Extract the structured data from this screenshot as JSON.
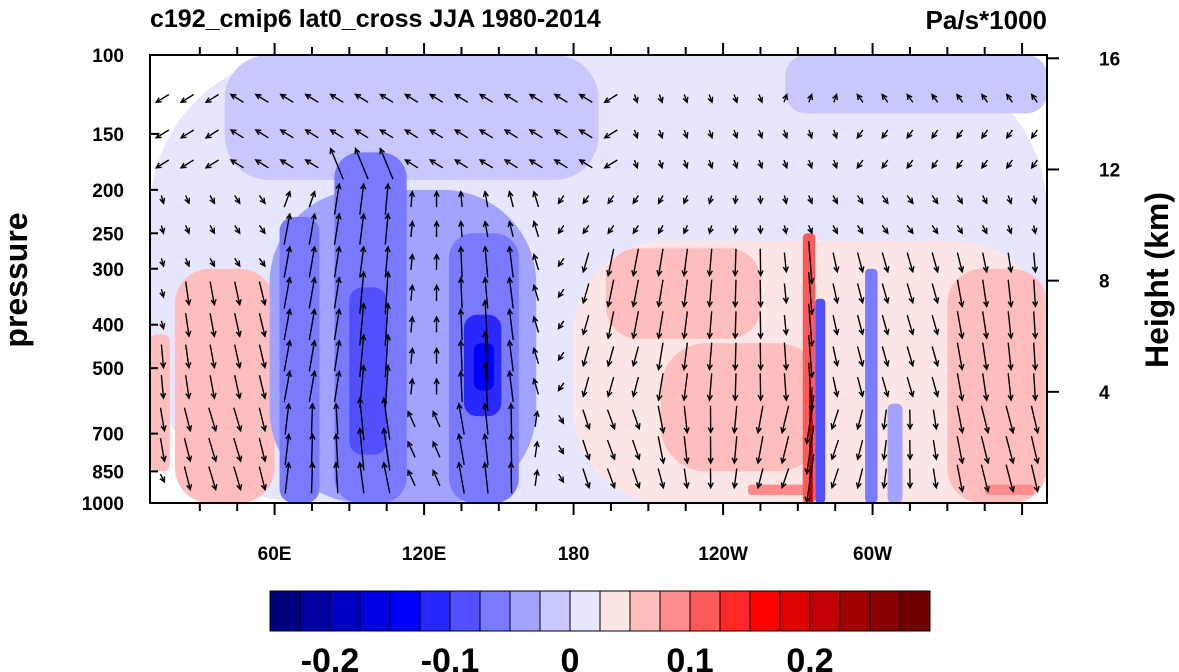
{
  "chart_data": {
    "type": "heatmap",
    "title": "c192_cmip6 lat0_cross JJA 1980-2014",
    "units": "Pa/s*1000",
    "ylabel": "pressure",
    "ylabel_right": "Height (km)",
    "y_scale": "log",
    "y_reversed": true,
    "ylim": [
      1000,
      100
    ],
    "y_ticks": [
      100,
      150,
      200,
      250,
      300,
      400,
      500,
      700,
      850,
      1000
    ],
    "x_range_deg_east": [
      10,
      370
    ],
    "x_ticks": [
      {
        "lon": 60,
        "label": "60E"
      },
      {
        "lon": 120,
        "label": "120E"
      },
      {
        "lon": 180,
        "label": "180"
      },
      {
        "lon": 240,
        "label": "120W"
      },
      {
        "lon": 300,
        "label": "60W"
      }
    ],
    "right_ticks": [
      {
        "km": 4,
        "label": "4"
      },
      {
        "km": 8,
        "label": "8"
      },
      {
        "km": 12,
        "label": "12"
      },
      {
        "km": 16,
        "label": "16"
      }
    ],
    "colorbar": {
      "levels": [
        -0.25,
        -0.225,
        -0.2,
        -0.175,
        -0.15,
        -0.125,
        -0.1,
        -0.075,
        -0.05,
        -0.025,
        0,
        0.025,
        0.05,
        0.075,
        0.1,
        0.125,
        0.15,
        0.175,
        0.2,
        0.225,
        0.25,
        0.275
      ],
      "colors": [
        "#00007f",
        "#0000a0",
        "#0000c2",
        "#0000e0",
        "#0000ff",
        "#2828ff",
        "#5050ff",
        "#7a7aff",
        "#a3a3ff",
        "#c8c8ff",
        "#e6e6ff",
        "#ffe6e6",
        "#ffbebe",
        "#ff8c8c",
        "#ff5a5a",
        "#ff2828",
        "#ff0000",
        "#e00000",
        "#c00000",
        "#a00000",
        "#880000",
        "#700000"
      ],
      "labels": [
        {
          "value": -0.2,
          "text": "-0.2"
        },
        {
          "value": -0.1,
          "text": "-0.1"
        },
        {
          "value": 0,
          "text": "0"
        },
        {
          "value": 0.1,
          "text": "0.1"
        },
        {
          "value": 0.2,
          "text": "0.2"
        }
      ]
    },
    "regions": [
      {
        "lon": [
          10,
          370
        ],
        "p": [
          100,
          1000
        ],
        "value": 0.01
      },
      {
        "lon": [
          40,
          190
        ],
        "p": [
          100,
          190
        ],
        "value": -0.01
      },
      {
        "lon": [
          265,
          370
        ],
        "p": [
          100,
          135
        ],
        "value": -0.01
      },
      {
        "lon": [
          20,
          60
        ],
        "p": [
          300,
          1000
        ],
        "value": 0.05
      },
      {
        "lon": [
          10,
          18
        ],
        "p": [
          420,
          850
        ],
        "value": 0.05
      },
      {
        "lon": [
          58,
          165
        ],
        "p": [
          200,
          1000
        ],
        "value": -0.03
      },
      {
        "lon": [
          62,
          78
        ],
        "p": [
          230,
          1000
        ],
        "value": -0.07
      },
      {
        "lon": [
          84,
          113
        ],
        "p": [
          165,
          1000
        ],
        "value": -0.07
      },
      {
        "lon": [
          130,
          158
        ],
        "p": [
          250,
          1000
        ],
        "value": -0.07
      },
      {
        "lon": [
          90,
          105
        ],
        "p": [
          330,
          780
        ],
        "value": -0.1
      },
      {
        "lon": [
          136,
          151
        ],
        "p": [
          380,
          640
        ],
        "value": -0.12
      },
      {
        "lon": [
          140,
          148
        ],
        "p": [
          440,
          560
        ],
        "value": -0.15
      },
      {
        "lon": [
          180,
          370
        ],
        "p": [
          260,
          1000
        ],
        "value": 0.04
      },
      {
        "lon": [
          193,
          255
        ],
        "p": [
          270,
          430
        ],
        "value": 0.06
      },
      {
        "lon": [
          215,
          280
        ],
        "p": [
          440,
          850
        ],
        "value": 0.06
      },
      {
        "lon": [
          330,
          370
        ],
        "p": [
          300,
          1000
        ],
        "value": 0.06
      },
      {
        "lon": [
          250,
          275
        ],
        "p": [
          910,
          960
        ],
        "value": 0.09
      },
      {
        "lon": [
          345,
          365
        ],
        "p": [
          910,
          960
        ],
        "value": 0.09
      },
      {
        "lon": [
          272,
          277
        ],
        "p": [
          250,
          1000
        ],
        "value": 0.1
      },
      {
        "lon": [
          277,
          281
        ],
        "p": [
          350,
          1000
        ],
        "value": -0.08
      },
      {
        "lon": [
          274.5,
          276
        ],
        "p": [
          550,
          1000
        ],
        "value": 0.2
      },
      {
        "lon": [
          297,
          302
        ],
        "p": [
          300,
          1000
        ],
        "value": -0.06
      },
      {
        "lon": [
          306,
          312
        ],
        "p": [
          600,
          1000
        ],
        "value": -0.05
      }
    ],
    "wind_arrows": "vector field of zonal and vertical velocity, shown as black arrows on a regular grid"
  }
}
